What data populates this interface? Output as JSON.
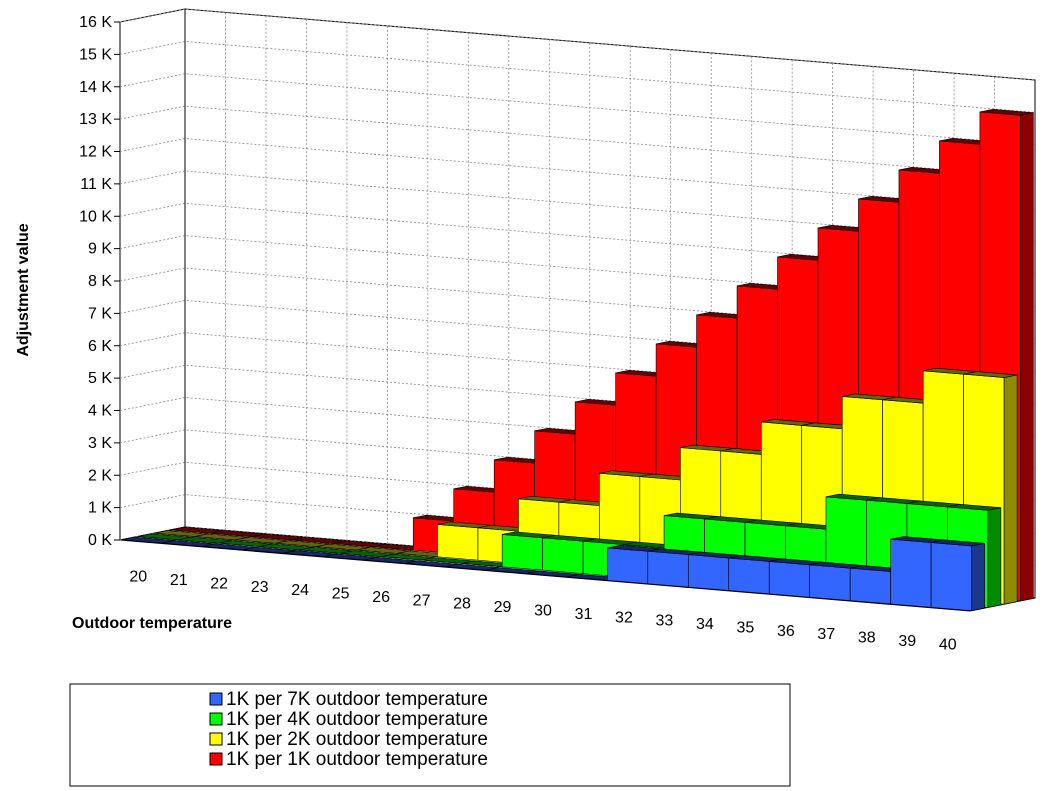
{
  "chart_data": {
    "type": "bar3d",
    "x_label": "Outdoor temperature",
    "y_label": "Adjustment value",
    "categories": [
      "20",
      "21",
      "22",
      "23",
      "24",
      "25",
      "26",
      "27",
      "28",
      "29",
      "30",
      "31",
      "32",
      "33",
      "34",
      "35",
      "36",
      "37",
      "38",
      "39",
      "40"
    ],
    "series": [
      {
        "name": "1K per 7K outdoor temperature",
        "color": "#3366ff",
        "values": [
          0,
          0,
          0,
          0,
          0,
          0,
          0,
          0,
          0,
          0,
          0,
          0,
          1,
          1,
          1,
          1,
          1,
          1,
          1,
          2,
          2
        ]
      },
      {
        "name": "1K per 4K outdoor temperature",
        "color": "#00ff00",
        "values": [
          0,
          0,
          0,
          0,
          0,
          0,
          0,
          0,
          0,
          1,
          1,
          1,
          1,
          2,
          2,
          2,
          2,
          3,
          3,
          3,
          3
        ]
      },
      {
        "name": "1K per 2K outdoor temperature",
        "color": "#ffff00",
        "values": [
          0,
          0,
          0,
          0,
          0,
          0,
          0,
          1,
          1,
          2,
          2,
          3,
          3,
          4,
          4,
          5,
          5,
          6,
          6,
          7,
          7
        ]
      },
      {
        "name": "1K per 1K outdoor temperature",
        "color": "#ff0000",
        "values": [
          0,
          0,
          0,
          0,
          0,
          0,
          1,
          2,
          3,
          4,
          5,
          6,
          7,
          8,
          9,
          10,
          11,
          12,
          13,
          14,
          15
        ]
      }
    ],
    "ylim": [
      0,
      16
    ],
    "yticks": [
      {
        "value": 0,
        "label": "0 K"
      },
      {
        "value": 1,
        "label": "1 K"
      },
      {
        "value": 2,
        "label": "2 K"
      },
      {
        "value": 3,
        "label": "3 K"
      },
      {
        "value": 4,
        "label": "4 K"
      },
      {
        "value": 5,
        "label": "5 K"
      },
      {
        "value": 6,
        "label": "6 K"
      },
      {
        "value": 7,
        "label": "7 K"
      },
      {
        "value": 8,
        "label": "8 K"
      },
      {
        "value": 9,
        "label": "9 K"
      },
      {
        "value": 10,
        "label": "10 K"
      },
      {
        "value": 11,
        "label": "11 K"
      },
      {
        "value": 12,
        "label": "12 K"
      },
      {
        "value": 13,
        "label": "13 K"
      },
      {
        "value": 14,
        "label": "14 K"
      },
      {
        "value": 15,
        "label": "15 K"
      },
      {
        "value": 16,
        "label": "16 K"
      }
    ],
    "grid": true
  }
}
